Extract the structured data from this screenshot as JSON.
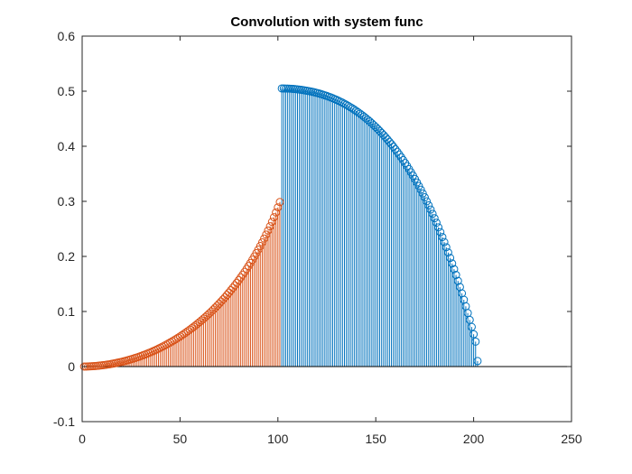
{
  "chart_data": {
    "type": "stem",
    "title": "Convolution with system func",
    "xlabel": "",
    "ylabel": "",
    "xlim": [
      0,
      250
    ],
    "ylim": [
      -0.1,
      0.6
    ],
    "xticks": [
      0,
      50,
      100,
      150,
      200,
      250
    ],
    "yticks": [
      -0.1,
      0,
      0.1,
      0.2,
      0.3,
      0.4,
      0.5,
      0.6
    ],
    "xtick_labels": [
      "0",
      "50",
      "100",
      "150",
      "200",
      "250"
    ],
    "ytick_labels": [
      "-0.1",
      "0",
      "0.1",
      "0.2",
      "0.3",
      "0.4",
      "0.5",
      "0.6"
    ],
    "grid": false,
    "legend": "none",
    "baseline": 0,
    "series": [
      {
        "color": "#D95319",
        "marker": "circle",
        "x": [
          1,
          2,
          3,
          4,
          5,
          6,
          7,
          8,
          9,
          10,
          11,
          12,
          13,
          14,
          15,
          16,
          17,
          18,
          19,
          20,
          21,
          22,
          23,
          24,
          25,
          26,
          27,
          28,
          29,
          30,
          31,
          32,
          33,
          34,
          35,
          36,
          37,
          38,
          39,
          40,
          41,
          42,
          43,
          44,
          45,
          46,
          47,
          48,
          49,
          50,
          51,
          52,
          53,
          54,
          55,
          56,
          57,
          58,
          59,
          60,
          61,
          62,
          63,
          64,
          65,
          66,
          67,
          68,
          69,
          70,
          71,
          72,
          73,
          74,
          75,
          76,
          77,
          78,
          79,
          80,
          81,
          82,
          83,
          84,
          85,
          86,
          87,
          88,
          89,
          90,
          91,
          92,
          93,
          94,
          95,
          96,
          97,
          98,
          99,
          100,
          101
        ],
        "y": [
          0,
          0.0001,
          0.0002,
          0.0004,
          0.0006,
          0.0008,
          0.0011,
          0.0014,
          0.0018,
          0.0022,
          0.0026,
          0.0031,
          0.0037,
          0.0042,
          0.0049,
          0.0055,
          0.0062,
          0.0069,
          0.0077,
          0.0085,
          0.0094,
          0.0103,
          0.0112,
          0.0122,
          0.0133,
          0.0143,
          0.0155,
          0.0166,
          0.0178,
          0.0191,
          0.0204,
          0.0217,
          0.0231,
          0.0246,
          0.0261,
          0.0276,
          0.0292,
          0.0308,
          0.0325,
          0.0343,
          0.0361,
          0.0379,
          0.0398,
          0.0418,
          0.0438,
          0.0458,
          0.0479,
          0.0501,
          0.0523,
          0.0546,
          0.057,
          0.0594,
          0.0618,
          0.0644,
          0.067,
          0.0696,
          0.0723,
          0.0751,
          0.078,
          0.0809,
          0.0839,
          0.087,
          0.0901,
          0.0933,
          0.0966,
          0.1,
          0.1034,
          0.107,
          0.1106,
          0.1143,
          0.1181,
          0.122,
          0.126,
          0.1301,
          0.1343,
          0.1386,
          0.143,
          0.1475,
          0.1521,
          0.1569,
          0.1618,
          0.1668,
          0.1719,
          0.1772,
          0.1826,
          0.1882,
          0.194,
          0.1999,
          0.206,
          0.2123,
          0.2188,
          0.2255,
          0.2324,
          0.2396,
          0.247,
          0.2547,
          0.2627,
          0.2711,
          0.2798,
          0.289,
          0.2987
        ]
      },
      {
        "color": "#0072BD",
        "marker": "circle",
        "x": [
          102,
          103,
          104,
          105,
          106,
          107,
          108,
          109,
          110,
          111,
          112,
          113,
          114,
          115,
          116,
          117,
          118,
          119,
          120,
          121,
          122,
          123,
          124,
          125,
          126,
          127,
          128,
          129,
          130,
          131,
          132,
          133,
          134,
          135,
          136,
          137,
          138,
          139,
          140,
          141,
          142,
          143,
          144,
          145,
          146,
          147,
          148,
          149,
          150,
          151,
          152,
          153,
          154,
          155,
          156,
          157,
          158,
          159,
          160,
          161,
          162,
          163,
          164,
          165,
          166,
          167,
          168,
          169,
          170,
          171,
          172,
          173,
          174,
          175,
          176,
          177,
          178,
          179,
          180,
          181,
          182,
          183,
          184,
          185,
          186,
          187,
          188,
          189,
          190,
          191,
          192,
          193,
          194,
          195,
          196,
          197,
          198,
          199,
          200,
          201,
          202
        ],
        "y": [
          0.505,
          0.5049,
          0.5048,
          0.5047,
          0.5045,
          0.5043,
          0.504,
          0.5037,
          0.5033,
          0.5029,
          0.5024,
          0.5019,
          0.5013,
          0.5007,
          0.5,
          0.4993,
          0.4985,
          0.4977,
          0.4968,
          0.4958,
          0.4948,
          0.4937,
          0.4925,
          0.4913,
          0.49,
          0.4887,
          0.4872,
          0.4857,
          0.4842,
          0.4825,
          0.4808,
          0.479,
          0.4771,
          0.4752,
          0.4731,
          0.471,
          0.4688,
          0.4665,
          0.4641,
          0.4616,
          0.4591,
          0.4564,
          0.4536,
          0.4508,
          0.4478,
          0.4448,
          0.4416,
          0.4383,
          0.4349,
          0.4314,
          0.4278,
          0.4241,
          0.4203,
          0.4163,
          0.4122,
          0.408,
          0.4037,
          0.3992,
          0.3946,
          0.3899,
          0.385,
          0.38,
          0.3748,
          0.3695,
          0.364,
          0.3584,
          0.3526,
          0.3467,
          0.3405,
          0.3343,
          0.3278,
          0.3212,
          0.3143,
          0.3073,
          0.3001,
          0.2927,
          0.2851,
          0.2773,
          0.2693,
          0.2611,
          0.2527,
          0.244,
          0.2351,
          0.226,
          0.2167,
          0.2071,
          0.1973,
          0.1872,
          0.1769,
          0.1663,
          0.1555,
          0.1444,
          0.133,
          0.1213,
          0.1094,
          0.0972,
          0.0847,
          0.0719,
          0.0587,
          0.0453,
          0.01
        ]
      }
    ]
  }
}
